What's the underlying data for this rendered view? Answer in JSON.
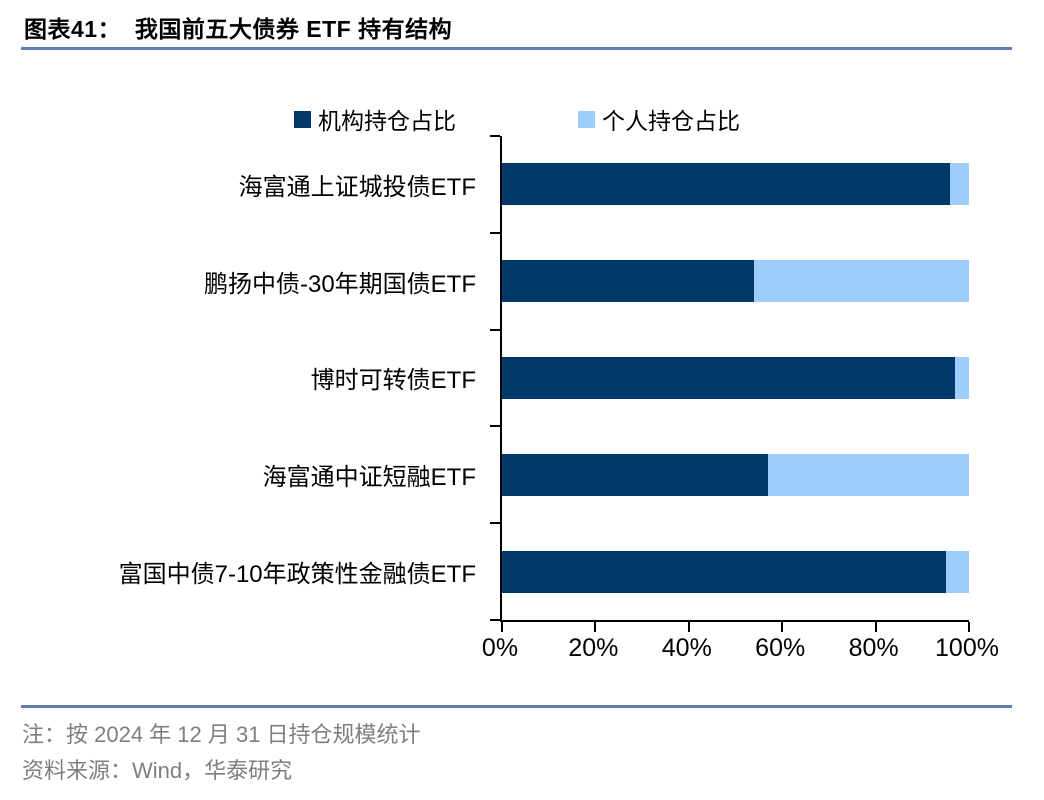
{
  "header": {
    "title": "图表41：  我国前五大债券 ETF 持有结构"
  },
  "chart_data": {
    "type": "bar",
    "orientation": "horizontal",
    "stacked": true,
    "title": "我国前五大债券 ETF 持有结构",
    "categories": [
      "海富通上证城投债ETF",
      "鹏扬中债-30年期国债ETF",
      "博时可转债ETF",
      "海富通中证短融ETF",
      "富国中债7-10年政策性金融债ETF"
    ],
    "series": [
      {
        "name": "机构持仓占比",
        "color": "#003869",
        "values": [
          96,
          54,
          97,
          57,
          95
        ]
      },
      {
        "name": "个人持仓占比",
        "color": "#9DCDFB",
        "values": [
          4,
          46,
          3,
          43,
          5
        ]
      }
    ],
    "xlabel": "",
    "ylabel": "",
    "xlim": [
      0,
      100
    ],
    "x_ticks": [
      "0%",
      "20%",
      "40%",
      "60%",
      "80%",
      "100%"
    ],
    "unit": "percent",
    "legend_position": "top",
    "grid": false
  },
  "footer": {
    "note": "注：按 2024 年 12 月 31 日持仓规模统计",
    "source": "资料来源：Wind，华泰研究"
  },
  "colors": {
    "institutional_bar": "#003869",
    "individual_bar": "#9DCDFB",
    "divider_line": "#5B7FAF",
    "note_text": "#7F7F7F"
  }
}
